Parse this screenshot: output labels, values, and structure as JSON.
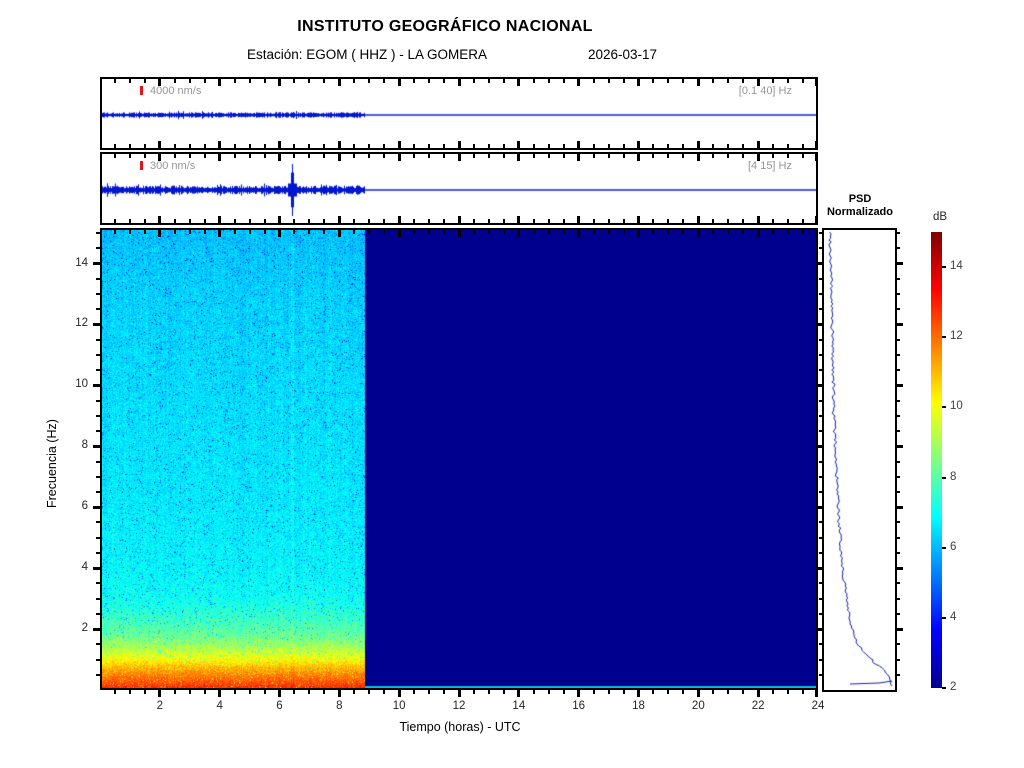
{
  "header": {
    "title": "INSTITUTO GEOGRÁFICO NACIONAL",
    "station_line": "Estación:  EGOM ( HHZ ) - LA GOMERA",
    "date": "2026-03-17"
  },
  "panels": [
    {
      "scale_label": "4000 nm/s",
      "band_label": "[0.1 40] Hz"
    },
    {
      "scale_label": "300 nm/s",
      "band_label": "[4 15] Hz"
    }
  ],
  "axes": {
    "x": {
      "title": "Tiempo (horas) - UTC",
      "min": 0,
      "max": 24,
      "major_step": 2,
      "minor_step": 0.5,
      "labels": [
        2,
        4,
        6,
        8,
        10,
        12,
        14,
        16,
        18,
        20,
        22,
        24
      ]
    },
    "y": {
      "title": "Frecuencia  (Hz)",
      "min": 0,
      "max": 15.1,
      "major_step": 2,
      "minor_step": 0.5,
      "labels": [
        2,
        4,
        6,
        8,
        10,
        12,
        14
      ]
    }
  },
  "psd": {
    "title_line1": "PSD",
    "title_line2": "Normalizado"
  },
  "colorbar": {
    "title": "dB",
    "min": 2,
    "max": 15,
    "labels": [
      2,
      4,
      6,
      8,
      10,
      12,
      14
    ]
  },
  "colors": {
    "waveform": "#0016CE",
    "psd_line": "#1322AA",
    "no_data": "#00008F",
    "cyan_strip": "#00C3D4",
    "marker_red": "#E3161B",
    "label_gray": "#969696",
    "jet": [
      [
        0,
        "#00008F"
      ],
      [
        0.125,
        "#0000FF"
      ],
      [
        0.375,
        "#00FFFF"
      ],
      [
        0.625,
        "#FFFF00"
      ],
      [
        0.875,
        "#FF0000"
      ],
      [
        1,
        "#800000"
      ]
    ]
  },
  "chart_data": [
    {
      "type": "line",
      "name": "seismogram-broadband",
      "scale": "4000 nm/s",
      "filter_band_hz": [
        0.1,
        40
      ],
      "x_range_hours": [
        0,
        24
      ],
      "data_interval_hours": [
        0,
        8.85
      ],
      "character": "continuous low-amplitude noise band, flat zero line after data end"
    },
    {
      "type": "line",
      "name": "seismogram-filtered",
      "scale": "300 nm/s",
      "filter_band_hz": [
        4,
        15
      ],
      "x_range_hours": [
        0,
        24
      ],
      "data_interval_hours": [
        0,
        8.85
      ],
      "spike_at_hours": 6.4,
      "character": "noisy band with one large transient spike, flat zero line after data end"
    },
    {
      "type": "heatmap",
      "name": "spectrogram",
      "xlabel": "Tiempo (horas) - UTC",
      "ylabel": "Frecuencia  (Hz)",
      "xlim": [
        0,
        24
      ],
      "ylim": [
        0,
        15.1
      ],
      "clim_db": [
        2,
        15
      ],
      "colormap": "jet",
      "data_interval_hours": [
        0,
        8.85
      ],
      "no_data_value_db": 2,
      "event_streak_hours": 6.4,
      "background_profile_freq_db": [
        [
          15,
          6.1
        ],
        [
          13,
          6.3
        ],
        [
          10,
          6.45
        ],
        [
          8,
          6.55
        ],
        [
          6,
          6.65
        ],
        [
          4,
          6.8
        ],
        [
          3,
          7.0
        ],
        [
          2.5,
          7.4
        ],
        [
          2,
          7.9
        ],
        [
          1.7,
          8.3
        ],
        [
          1.4,
          8.9
        ],
        [
          1.1,
          9.6
        ],
        [
          0.9,
          10.2
        ],
        [
          0.7,
          10.9
        ],
        [
          0.5,
          11.5
        ],
        [
          0.3,
          12.0
        ],
        [
          0.15,
          12.4
        ],
        [
          0,
          12.8
        ]
      ]
    },
    {
      "type": "line",
      "name": "psd-normalizado",
      "orientation": "vertical-frequency-axis",
      "points_freq_value": [
        [
          15,
          0.05
        ],
        [
          14,
          0.06
        ],
        [
          13,
          0.07
        ],
        [
          12,
          0.08
        ],
        [
          11,
          0.09
        ],
        [
          10,
          0.1
        ],
        [
          9,
          0.11
        ],
        [
          8,
          0.13
        ],
        [
          7,
          0.15
        ],
        [
          6,
          0.17
        ],
        [
          5,
          0.2
        ],
        [
          4,
          0.24
        ],
        [
          3.5,
          0.27
        ],
        [
          3,
          0.3
        ],
        [
          2.5,
          0.34
        ],
        [
          2,
          0.37
        ],
        [
          1.8,
          0.4
        ],
        [
          1.5,
          0.45
        ],
        [
          1.2,
          0.54
        ],
        [
          1.0,
          0.62
        ],
        [
          0.8,
          0.73
        ],
        [
          0.6,
          0.85
        ],
        [
          0.4,
          0.94
        ],
        [
          0.25,
          1.0
        ],
        [
          0.1,
          1.0
        ]
      ]
    }
  ]
}
